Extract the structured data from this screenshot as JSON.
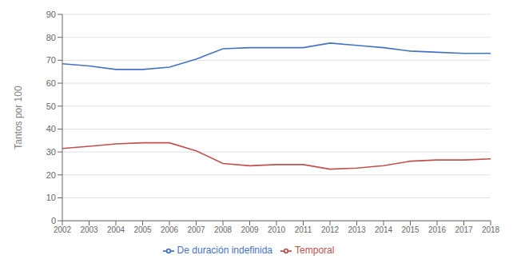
{
  "chart_data": {
    "type": "line",
    "ylabel": "Tantos por 100",
    "categories": [
      "2002",
      "2003",
      "2004",
      "2005",
      "2006",
      "2007",
      "2008",
      "2009",
      "2010",
      "2011",
      "2012",
      "2013",
      "2014",
      "2015",
      "2016",
      "2017",
      "2018"
    ],
    "series": [
      {
        "name": "De duración indefinida",
        "color": "#4472C4",
        "values": [
          68.5,
          67.5,
          66.0,
          66.0,
          67.0,
          70.5,
          75.0,
          75.5,
          75.5,
          75.5,
          77.5,
          76.5,
          75.5,
          74.0,
          73.5,
          73.0,
          73.0
        ]
      },
      {
        "name": "Temporal",
        "color": "#C0504D",
        "values": [
          31.5,
          32.5,
          33.5,
          34.0,
          34.0,
          30.5,
          25.0,
          24.0,
          24.5,
          24.5,
          22.5,
          23.0,
          24.0,
          26.0,
          26.5,
          26.5,
          27.0
        ]
      }
    ],
    "ylim": [
      0,
      90
    ],
    "yticks": [
      0,
      10,
      20,
      30,
      40,
      50,
      60,
      70,
      80,
      90
    ],
    "grid": true,
    "legend": "bottom"
  }
}
